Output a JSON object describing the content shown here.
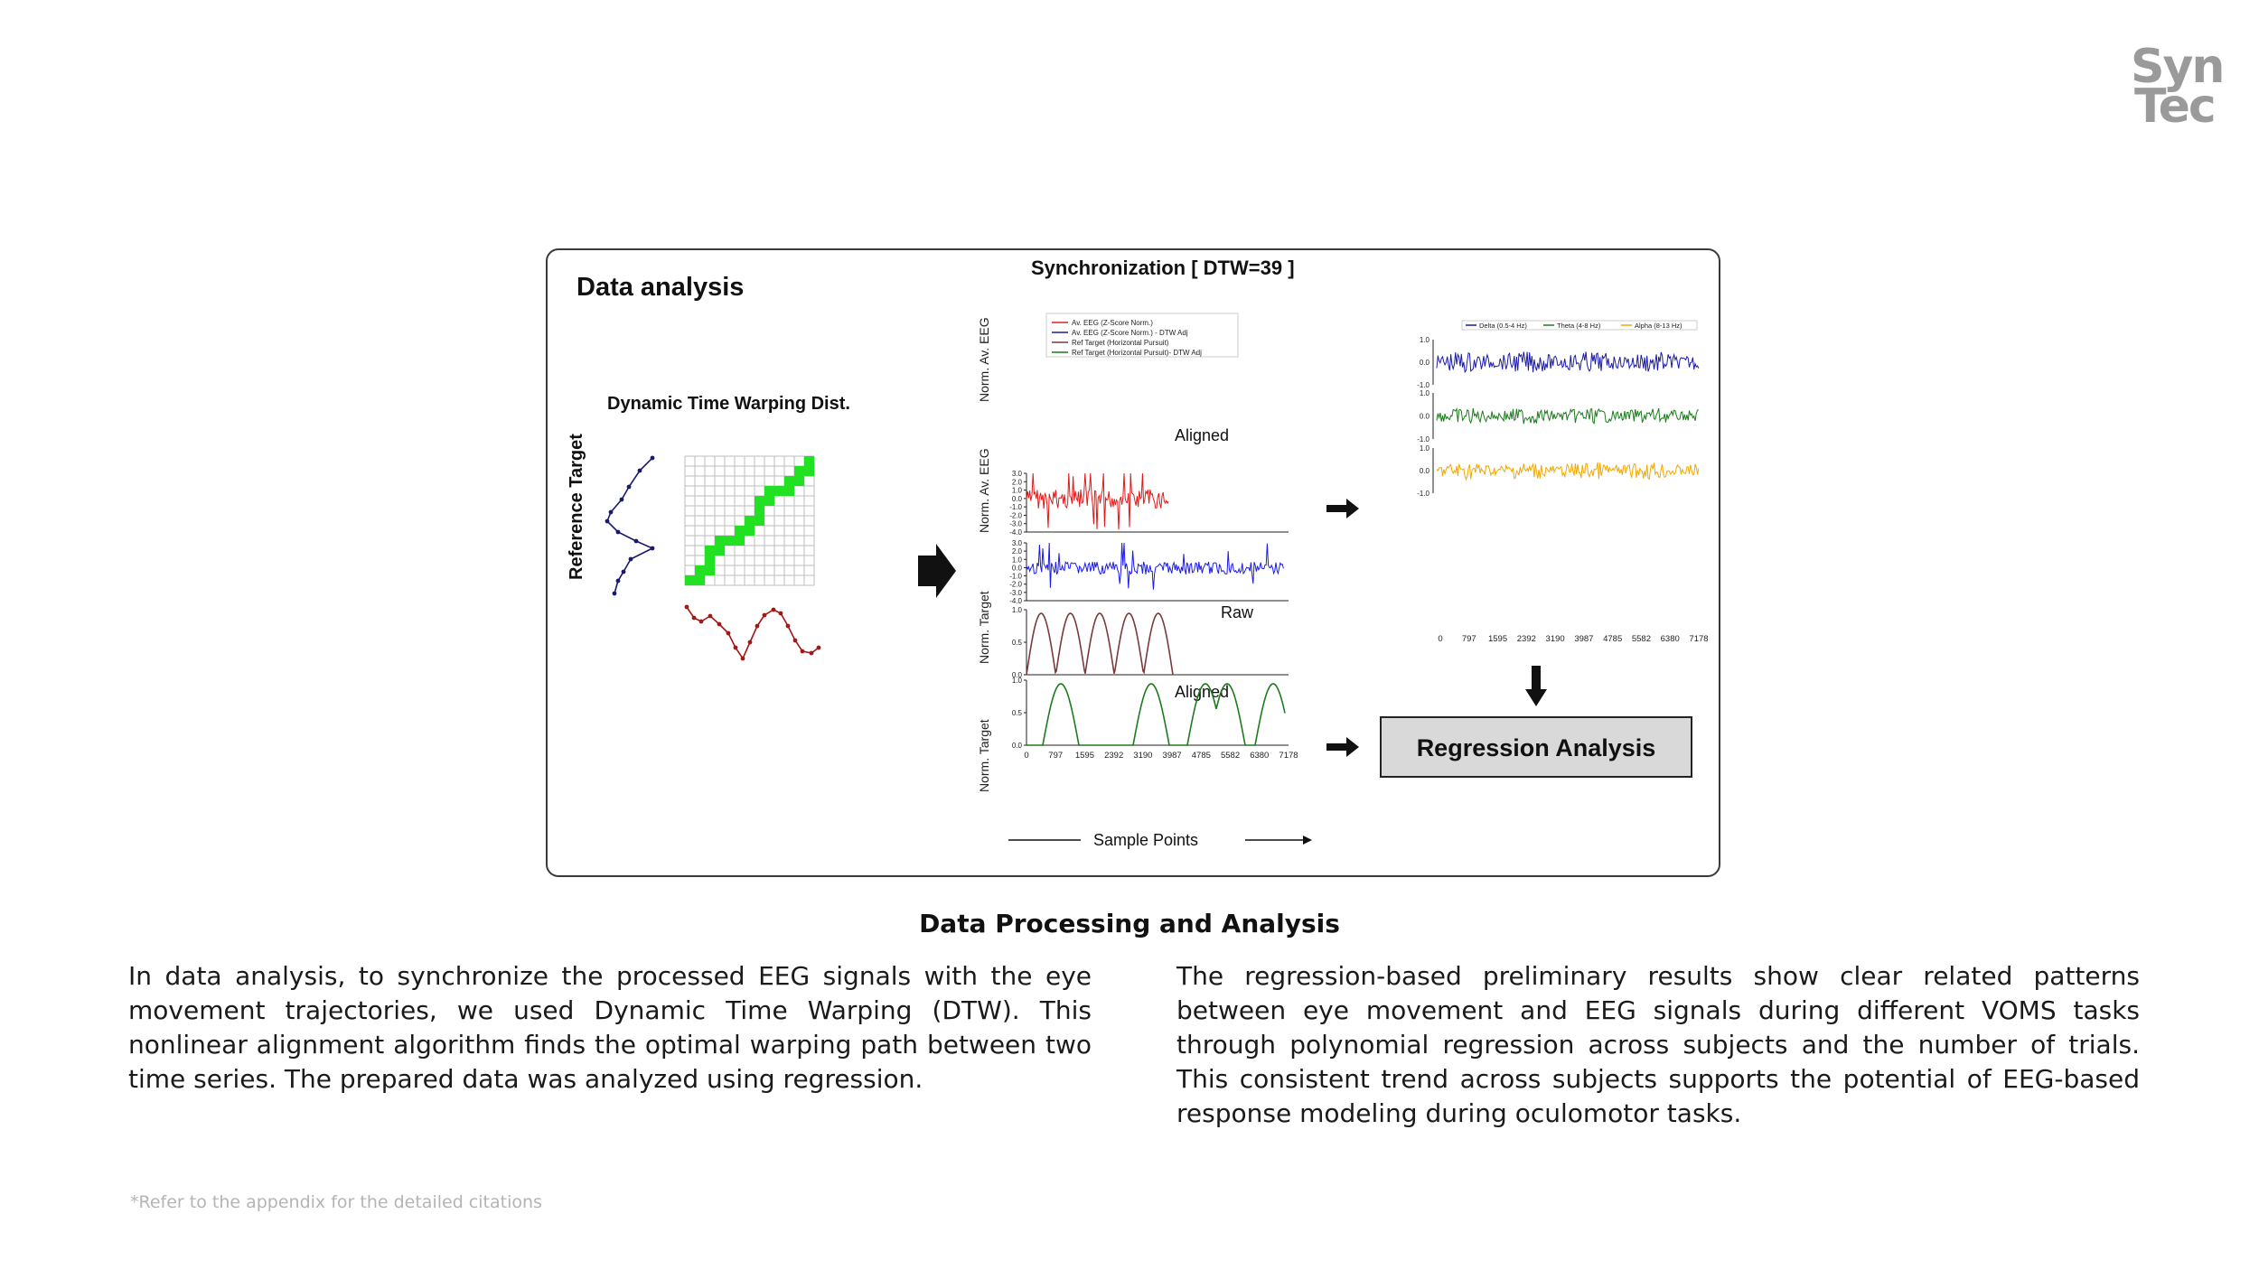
{
  "logo": {
    "line1": "Syn",
    "line2": "Tec"
  },
  "figure": {
    "panel_title": "Data analysis",
    "dtw_title": "Dynamic Time Warping Dist.",
    "ref_label": "Reference Target",
    "sync_title": "Synchronization [ DTW=39 ]",
    "legend": [
      {
        "label": "Av. EEG (Z-Score Norm.)",
        "color": "#e02020"
      },
      {
        "label": "Av. EEG (Z-Score Norm.) - DTW Adj",
        "color": "#1a1aaa"
      },
      {
        "label": "Ref Target (Horizontal Pursuit)",
        "color": "#7a3a3a"
      },
      {
        "label": "Ref Target (Horizontal Pursuit)- DTW Adj",
        "color": "#1d7a1d"
      }
    ],
    "ylabels": {
      "eeg1": "Norm. Av. EEG",
      "eeg2": "Norm. Av. EEG",
      "tgt1": "Norm. Target",
      "tgt2": "Norm. Target"
    },
    "eeg_ticks": [
      "3.0",
      "2.0",
      "1.0",
      "0.0",
      "-1.0",
      "-2.0",
      "-3.0",
      "-4.0"
    ],
    "target_ticks": [
      "1.0",
      "0.5",
      "0.0"
    ],
    "x_ticks": [
      "0",
      "797",
      "1595",
      "2392",
      "3190",
      "3987",
      "4785",
      "5582",
      "6380",
      "7178"
    ],
    "annotations": {
      "aligned1": "Aligned",
      "raw": "Raw",
      "aligned2": "Aligned"
    },
    "xlabel": "Sample Points",
    "band_legend": [
      {
        "label": "Delta (0.5-4 Hz)",
        "color": "#1a1aaa"
      },
      {
        "label": "Theta (4-8 Hz)",
        "color": "#1d7a1d"
      },
      {
        "label": "Alpha (8-13 Hz)",
        "color": "#f0a800"
      }
    ],
    "band_ticks": [
      "1.0",
      "0.0",
      "-1.0"
    ],
    "regression_label": "Regression Analysis"
  },
  "section_title": "Data Processing and Analysis",
  "paragraph_left": "In data analysis, to synchronize the processed EEG signals with the eye movement trajectories, we used Dynamic Time Warping (DTW). This nonlinear alignment algorithm finds the optimal warping path between two time series. The prepared data was analyzed using regression.",
  "paragraph_right": "The regression-based preliminary results show clear related patterns between eye movement and EEG signals during different VOMS tasks through polynomial regression across subjects and the number of trials. This consistent trend across subjects supports the potential of EEG-based response modeling during oculomotor tasks.",
  "footnote": "*Refer to the appendix for the detailed citations"
}
